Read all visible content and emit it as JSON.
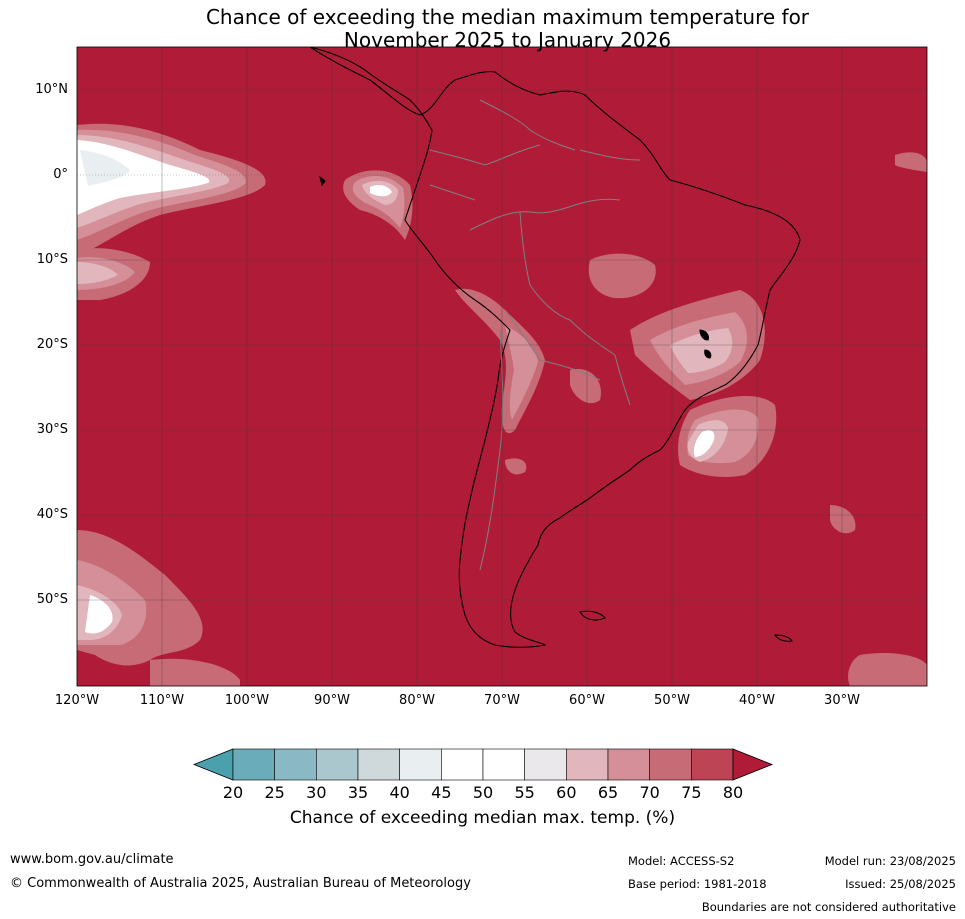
{
  "title": {
    "line1": "Chance of exceeding the median maximum temperature for",
    "line2": "November 2025 to January 2026"
  },
  "map": {
    "latitude_labels": [
      "10°N",
      "0°",
      "10°S",
      "20°S",
      "30°S",
      "40°S",
      "50°S"
    ],
    "longitude_labels": [
      "120°W",
      "110°W",
      "100°W",
      "90°W",
      "80°W",
      "70°W",
      "60°W",
      "50°W",
      "40°W",
      "30°W"
    ],
    "background_category": "80+",
    "background_color": "#b01c37"
  },
  "colorbar": {
    "ticks": [
      "20",
      "25",
      "30",
      "35",
      "40",
      "45",
      "50",
      "55",
      "60",
      "65",
      "70",
      "75",
      "80"
    ],
    "colors": [
      "#4aa0ad",
      "#6aacba",
      "#8ab9c6",
      "#a9c7cd",
      "#cfd8db",
      "#e9eff1",
      "#ffffff",
      "#ffffff",
      "#eae8ea",
      "#e2b6bd",
      "#d48f98",
      "#c76b76",
      "#bd4455",
      "#b01c37"
    ],
    "label": "Chance of exceeding median max. temp. (%)"
  },
  "footer": {
    "website": "www.bom.gov.au/climate",
    "copyright": "© Commonwealth of Australia 2025, Australian Bureau of Meteorology",
    "model": "Model: ACCESS-S2",
    "base_period": "Base period: 1981-2018",
    "model_run": "Model run: 23/08/2025",
    "issued": "Issued: 25/08/2025",
    "disclaimer": "Boundaries are not considered authoritative"
  }
}
